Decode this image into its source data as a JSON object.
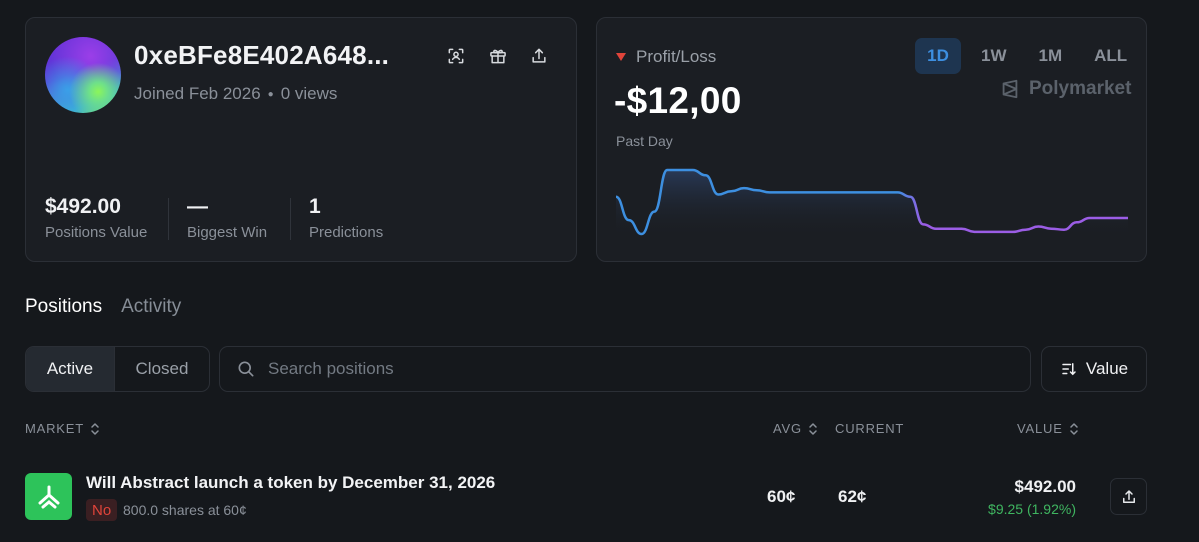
{
  "profile": {
    "address": "0xeBFe8E402A648...",
    "joined": "Joined Feb 2026",
    "views": "0 views",
    "icons": [
      "scan-icon",
      "gift-icon",
      "share-icon"
    ],
    "stats": [
      {
        "value": "$492.00",
        "label": "Positions Value"
      },
      {
        "value": "—",
        "label": "Biggest Win"
      },
      {
        "value": "1",
        "label": "Predictions"
      }
    ]
  },
  "pnl": {
    "title": "Profit/Loss",
    "value": "-$12,00",
    "period": "Past Day",
    "ranges": [
      "1D",
      "1W",
      "1M",
      "ALL"
    ],
    "active_range": "1D",
    "brand": "Polymarket",
    "colors": {
      "line_start": "#3d8fe0",
      "line_end": "#9b5de5",
      "negative": "#e0443a"
    }
  },
  "chart_data": {
    "type": "line",
    "series": [
      {
        "values": [
          30,
          8,
          -5,
          16,
          55,
          55,
          55,
          50,
          32,
          35,
          38,
          36,
          34,
          34,
          34,
          34,
          34,
          34,
          34,
          34,
          34,
          34,
          34,
          30,
          4,
          0,
          0,
          0,
          -3,
          -3,
          -3,
          -3,
          -1,
          2,
          0,
          -1,
          6,
          10,
          10,
          10,
          10
        ]
      }
    ]
  },
  "tabs": {
    "positions": "Positions",
    "activity": "Activity"
  },
  "filters": {
    "active": "Active",
    "closed": "Closed"
  },
  "search": {
    "placeholder": "Search positions"
  },
  "sort": {
    "label": "Value"
  },
  "table": {
    "headers": {
      "market": "MARKET",
      "avg": "AVG",
      "current": "CURRENT",
      "value": "VALUE"
    },
    "rows": [
      {
        "title": "Will Abstract launch a token by December 31, 2026",
        "outcome": "No",
        "shares": "800.0 shares at 60¢",
        "avg": "60¢",
        "current": "62¢",
        "value": "$492.00",
        "change": "$9.25 (1.92%)"
      }
    ]
  }
}
